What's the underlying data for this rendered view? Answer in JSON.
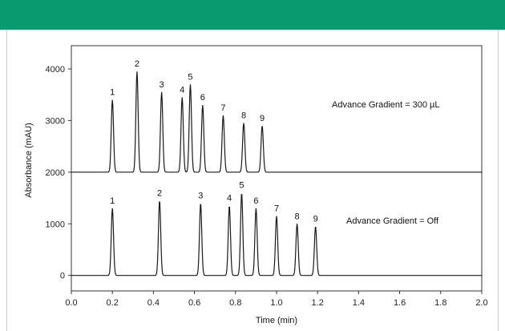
{
  "colors": {
    "header": "#0a9a6f",
    "trace": "#1a1a1a",
    "axis": "#333333"
  },
  "chart_data": {
    "type": "line",
    "xlabel": "Time (min)",
    "ylabel": "Absorbance (mAU)",
    "xlim": [
      0.0,
      2.0
    ],
    "ylim": [
      -300,
      4450
    ],
    "x_ticks": [
      "0.0",
      "0.2",
      "0.4",
      "0.6",
      "0.8",
      "1.0",
      "1.2",
      "1.4",
      "1.6",
      "1.8",
      "2.0"
    ],
    "y_ticks": [
      "0",
      "1000",
      "2000",
      "3000",
      "4000"
    ],
    "grid": false,
    "series": [
      {
        "annotation": "Advance Gradient = 300 µL",
        "baseline": 2000,
        "trace_start": 0.0,
        "trace_end": 2.0,
        "peaks": [
          {
            "label": "1",
            "time": 0.2,
            "apex": 3400
          },
          {
            "label": "2",
            "time": 0.32,
            "apex": 3950
          },
          {
            "label": "3",
            "time": 0.44,
            "apex": 3550
          },
          {
            "label": "4",
            "time": 0.54,
            "apex": 3450
          },
          {
            "label": "5",
            "time": 0.58,
            "apex": 3700
          },
          {
            "label": "6",
            "time": 0.64,
            "apex": 3300
          },
          {
            "label": "7",
            "time": 0.74,
            "apex": 3100
          },
          {
            "label": "8",
            "time": 0.84,
            "apex": 2950
          },
          {
            "label": "9",
            "time": 0.93,
            "apex": 2900
          }
        ]
      },
      {
        "annotation": "Advance Gradient = Off",
        "baseline": 0,
        "trace_start": 0.0,
        "trace_end": 2.0,
        "peaks": [
          {
            "label": "1",
            "time": 0.2,
            "apex": 1300
          },
          {
            "label": "2",
            "time": 0.43,
            "apex": 1450
          },
          {
            "label": "3",
            "time": 0.63,
            "apex": 1400
          },
          {
            "label": "4",
            "time": 0.77,
            "apex": 1350
          },
          {
            "label": "5",
            "time": 0.83,
            "apex": 1600
          },
          {
            "label": "6",
            "time": 0.9,
            "apex": 1300
          },
          {
            "label": "7",
            "time": 1.0,
            "apex": 1150
          },
          {
            "label": "8",
            "time": 1.1,
            "apex": 1000
          },
          {
            "label": "9",
            "time": 1.19,
            "apex": 950
          }
        ]
      }
    ]
  }
}
